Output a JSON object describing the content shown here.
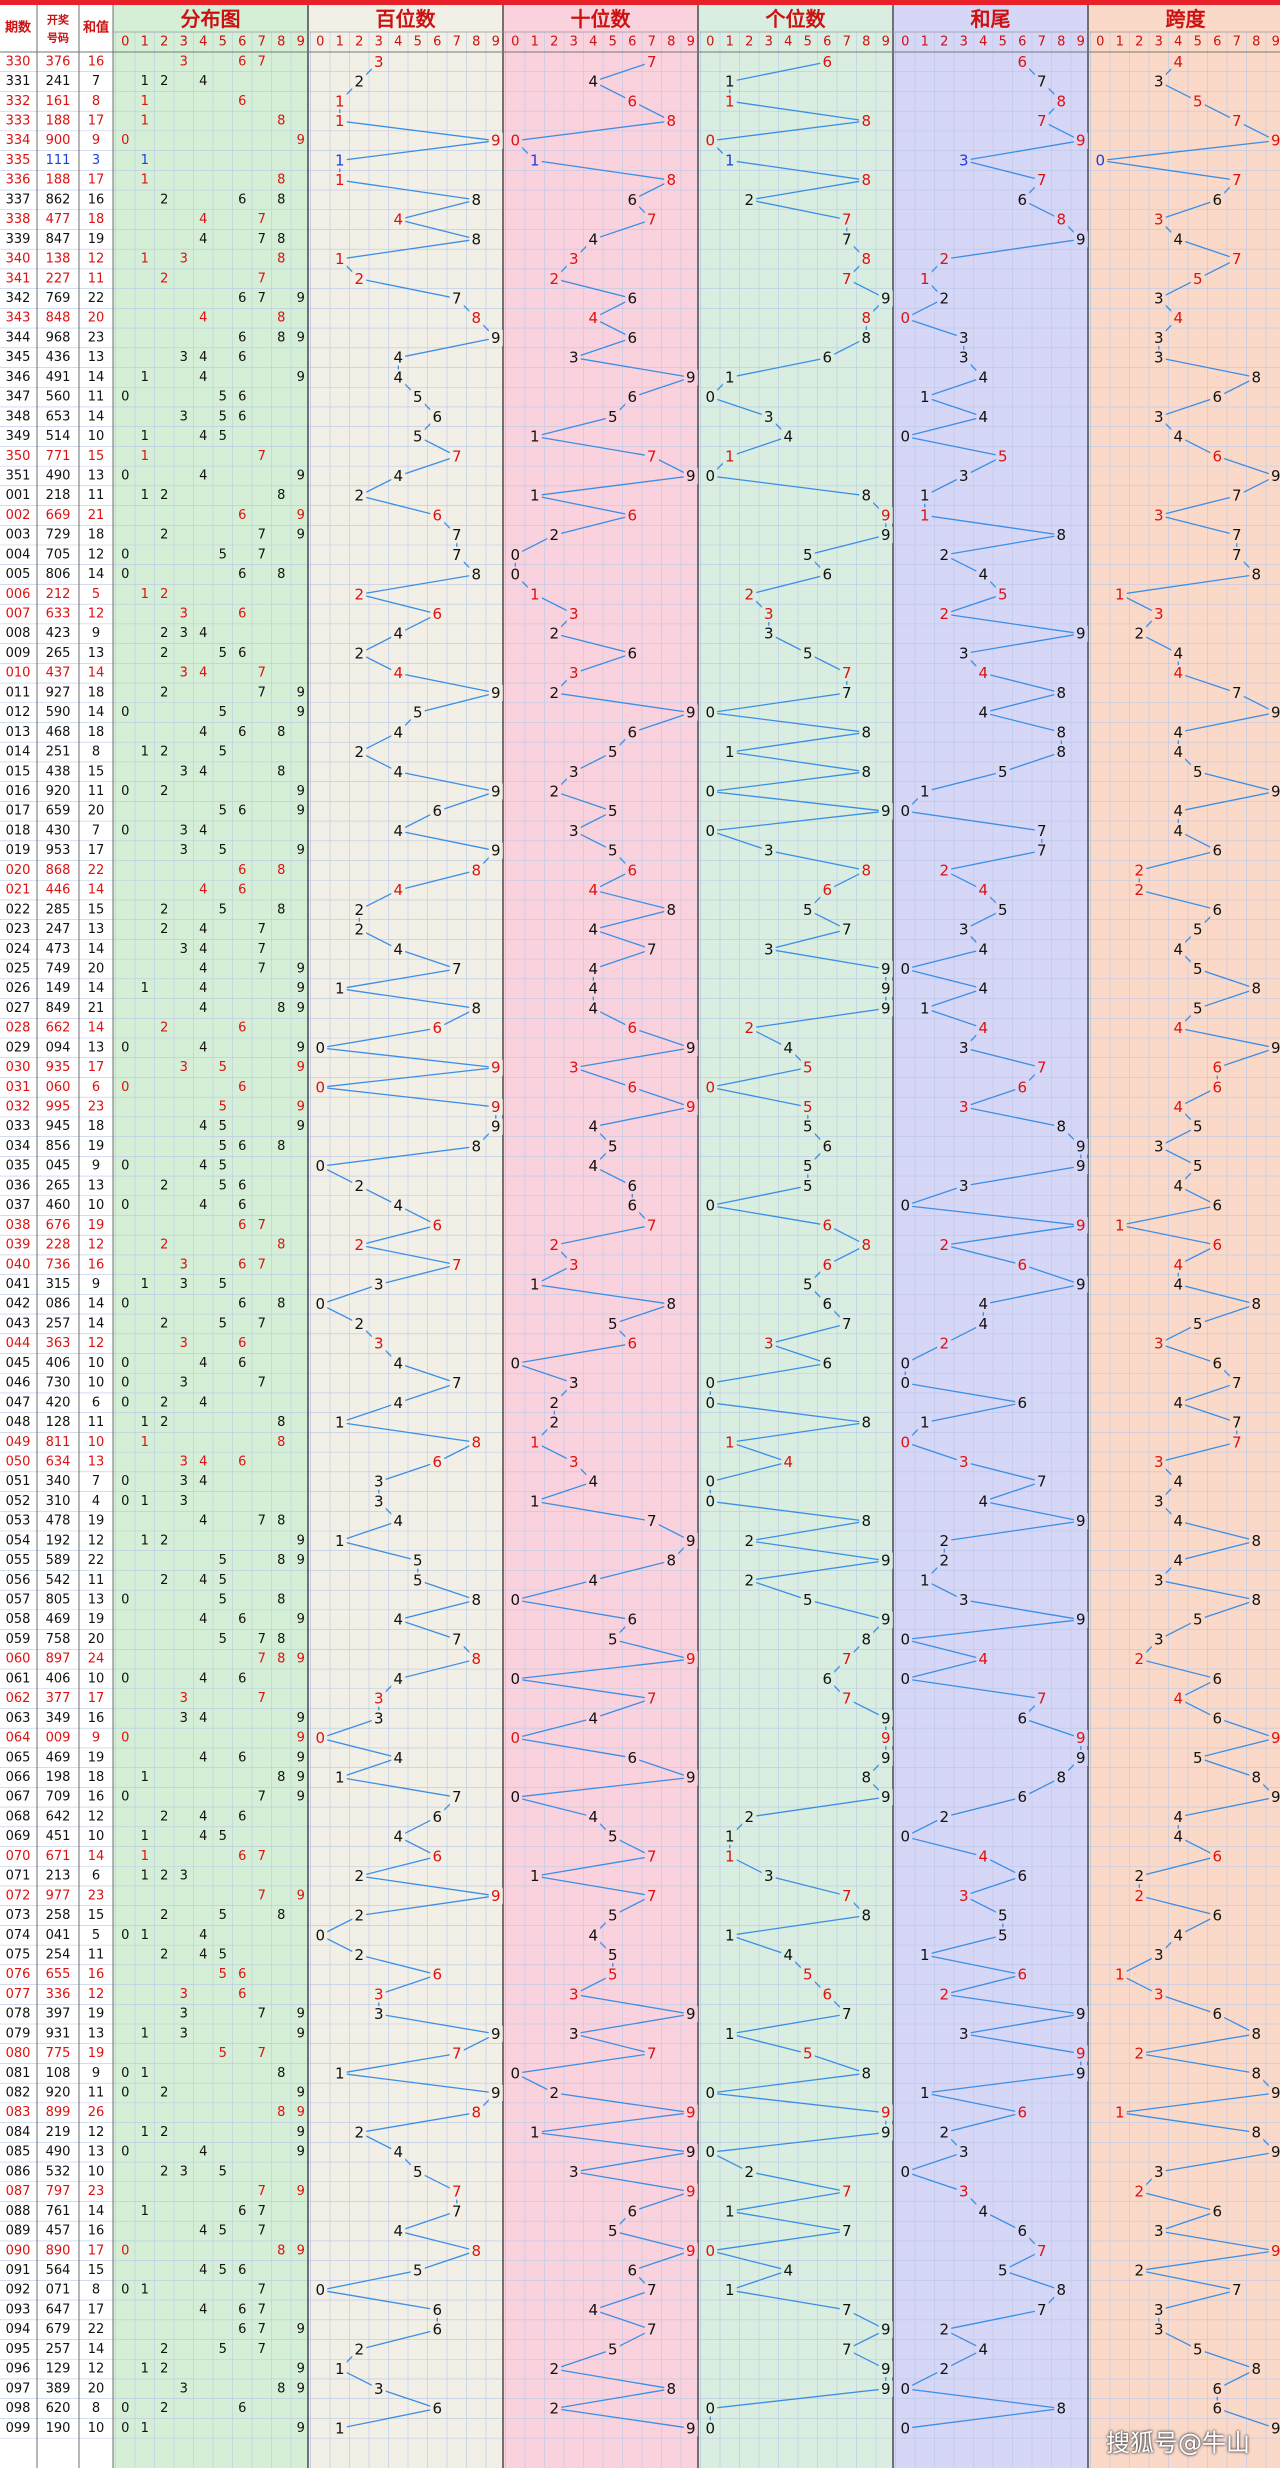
{
  "chart_data": {
    "type": "table",
    "title": "",
    "headers": {
      "period": "期数",
      "draw": "开奖号码",
      "sum": "和值",
      "distribution": "分布图",
      "hundreds": "百位数",
      "tens": "十位数",
      "units": "个位数",
      "sum_tail": "和尾",
      "span": "跨度"
    },
    "digit_labels": [
      "0",
      "1",
      "2",
      "3",
      "4",
      "5",
      "6",
      "7",
      "8",
      "9"
    ],
    "rows": [
      [
        "330",
        "376"
      ],
      [
        "331",
        "241"
      ],
      [
        "332",
        "161"
      ],
      [
        "333",
        "188"
      ],
      [
        "334",
        "900"
      ],
      [
        "335",
        "111"
      ],
      [
        "336",
        "188"
      ],
      [
        "337",
        "862"
      ],
      [
        "338",
        "477"
      ],
      [
        "339",
        "847"
      ],
      [
        "340",
        "138"
      ],
      [
        "341",
        "227"
      ],
      [
        "342",
        "769"
      ],
      [
        "343",
        "848"
      ],
      [
        "344",
        "968"
      ],
      [
        "345",
        "436"
      ],
      [
        "346",
        "491"
      ],
      [
        "347",
        "560"
      ],
      [
        "348",
        "653"
      ],
      [
        "349",
        "514"
      ],
      [
        "350",
        "771"
      ],
      [
        "351",
        "490"
      ],
      [
        "001",
        "218"
      ],
      [
        "002",
        "669"
      ],
      [
        "003",
        "729"
      ],
      [
        "004",
        "705"
      ],
      [
        "005",
        "806"
      ],
      [
        "006",
        "212"
      ],
      [
        "007",
        "633"
      ],
      [
        "008",
        "423"
      ],
      [
        "009",
        "265"
      ],
      [
        "010",
        "437"
      ],
      [
        "011",
        "927"
      ],
      [
        "012",
        "590"
      ],
      [
        "013",
        "468"
      ],
      [
        "014",
        "251"
      ],
      [
        "015",
        "438"
      ],
      [
        "016",
        "920"
      ],
      [
        "017",
        "659"
      ],
      [
        "018",
        "430"
      ],
      [
        "019",
        "953"
      ],
      [
        "020",
        "868"
      ],
      [
        "021",
        "446"
      ],
      [
        "022",
        "285"
      ],
      [
        "023",
        "247"
      ],
      [
        "024",
        "473"
      ],
      [
        "025",
        "749"
      ],
      [
        "026",
        "149"
      ],
      [
        "027",
        "849"
      ],
      [
        "028",
        "662"
      ],
      [
        "029",
        "094"
      ],
      [
        "030",
        "935"
      ],
      [
        "031",
        "060"
      ],
      [
        "032",
        "995"
      ],
      [
        "033",
        "945"
      ],
      [
        "034",
        "856"
      ],
      [
        "035",
        "045"
      ],
      [
        "036",
        "265"
      ],
      [
        "037",
        "460"
      ],
      [
        "038",
        "676"
      ],
      [
        "039",
        "228"
      ],
      [
        "040",
        "736"
      ],
      [
        "041",
        "315"
      ],
      [
        "042",
        "086"
      ],
      [
        "043",
        "257"
      ],
      [
        "044",
        "363"
      ],
      [
        "045",
        "406"
      ],
      [
        "046",
        "730"
      ],
      [
        "047",
        "420"
      ],
      [
        "048",
        "128"
      ],
      [
        "049",
        "811"
      ],
      [
        "050",
        "634"
      ],
      [
        "051",
        "340"
      ],
      [
        "052",
        "310"
      ],
      [
        "053",
        "478"
      ],
      [
        "054",
        "192"
      ],
      [
        "055",
        "589"
      ],
      [
        "056",
        "542"
      ],
      [
        "057",
        "805"
      ],
      [
        "058",
        "469"
      ],
      [
        "059",
        "758"
      ],
      [
        "060",
        "897"
      ],
      [
        "061",
        "406"
      ],
      [
        "062",
        "377"
      ],
      [
        "063",
        "349"
      ],
      [
        "064",
        "009"
      ],
      [
        "065",
        "469"
      ],
      [
        "066",
        "198"
      ],
      [
        "067",
        "709"
      ],
      [
        "068",
        "642"
      ],
      [
        "069",
        "451"
      ],
      [
        "070",
        "671"
      ],
      [
        "071",
        "213"
      ],
      [
        "072",
        "977"
      ],
      [
        "073",
        "258"
      ],
      [
        "074",
        "041"
      ],
      [
        "075",
        "254"
      ],
      [
        "076",
        "655"
      ],
      [
        "077",
        "336"
      ],
      [
        "078",
        "397"
      ],
      [
        "079",
        "931"
      ],
      [
        "080",
        "775"
      ],
      [
        "081",
        "108"
      ],
      [
        "082",
        "920"
      ],
      [
        "083",
        "899"
      ],
      [
        "084",
        "219"
      ],
      [
        "085",
        "490"
      ],
      [
        "086",
        "532"
      ],
      [
        "087",
        "797"
      ],
      [
        "088",
        "761"
      ],
      [
        "089",
        "457"
      ],
      [
        "090",
        "890"
      ],
      [
        "091",
        "564"
      ],
      [
        "092",
        "071"
      ],
      [
        "093",
        "647"
      ],
      [
        "094",
        "679"
      ],
      [
        "095",
        "257"
      ],
      [
        "096",
        "129"
      ],
      [
        "097",
        "389"
      ],
      [
        "098",
        "620"
      ],
      [
        "099",
        "190"
      ]
    ],
    "colors": {
      "top_bar": "#e8202a",
      "header_text": "#cc1111",
      "red_row": "#dd1111",
      "digit_text": "#111111",
      "highlight_digit": "#e8202a",
      "blue_digit": "#1a3fe0",
      "trend_line": "#3b8ee6",
      "grid_line": "#b9c8e6",
      "bg_dist": "#d4efd6",
      "bg_hundreds": "#f1efe6",
      "bg_tens": "#f9d2dd",
      "bg_units": "#d9eee0",
      "bg_tail": "#d6d6f7",
      "bg_span": "#fbd9c9"
    }
  },
  "watermark": "搜狐号@牛山"
}
